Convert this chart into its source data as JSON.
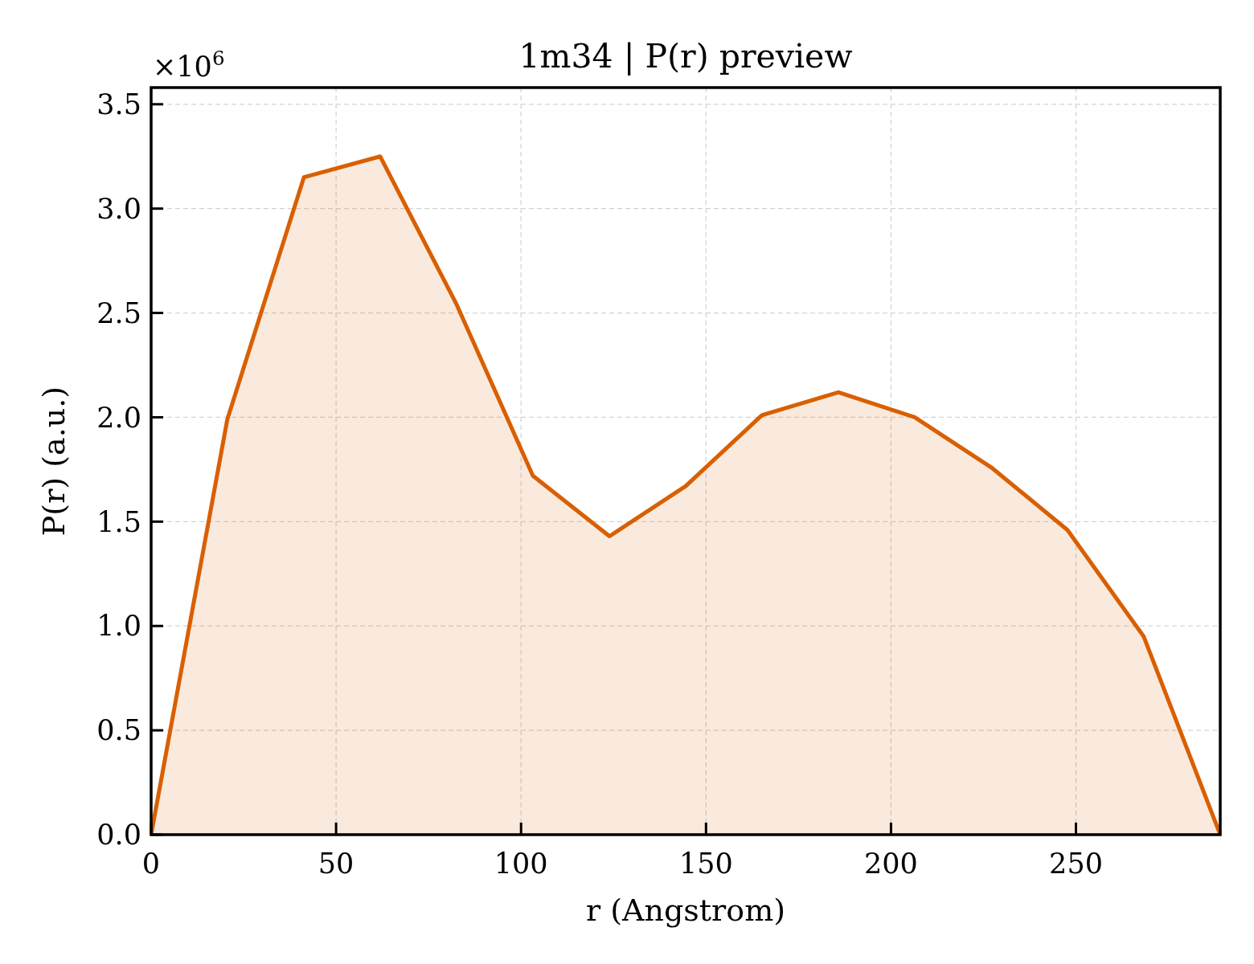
{
  "chart_data": {
    "type": "area",
    "title": "1m34 | P(r) preview",
    "xlabel": "r (Angstrom)",
    "ylabel": "P(r) (a.u.)",
    "annotations": [
      "×10$^{6}$"
    ],
    "x": [
      0,
      20.6,
      41.3,
      61.9,
      82.6,
      103.2,
      123.9,
      144.5,
      165.1,
      185.8,
      206.4,
      227.1,
      247.7,
      268.3,
      289.0
    ],
    "values": [
      0,
      1.99,
      3.15,
      3.25,
      2.54,
      1.72,
      1.43,
      1.67,
      2.01,
      2.12,
      2.0,
      1.76,
      1.46,
      0.95,
      0
    ],
    "color": "#d95f02",
    "xlim": [
      0,
      289
    ],
    "xticks": [
      0,
      50,
      100,
      150,
      200,
      250
    ],
    "ylim": [
      0,
      3.58
    ],
    "yticks": [
      {
        "value": 0,
        "label": "0.0"
      },
      0.5,
      {
        "value": 1,
        "label": "1.0"
      },
      1.5,
      {
        "value": 2,
        "label": "2.0"
      },
      2.5,
      {
        "value": 3,
        "label": "3.0"
      },
      3.5
    ],
    "grid": true
  }
}
